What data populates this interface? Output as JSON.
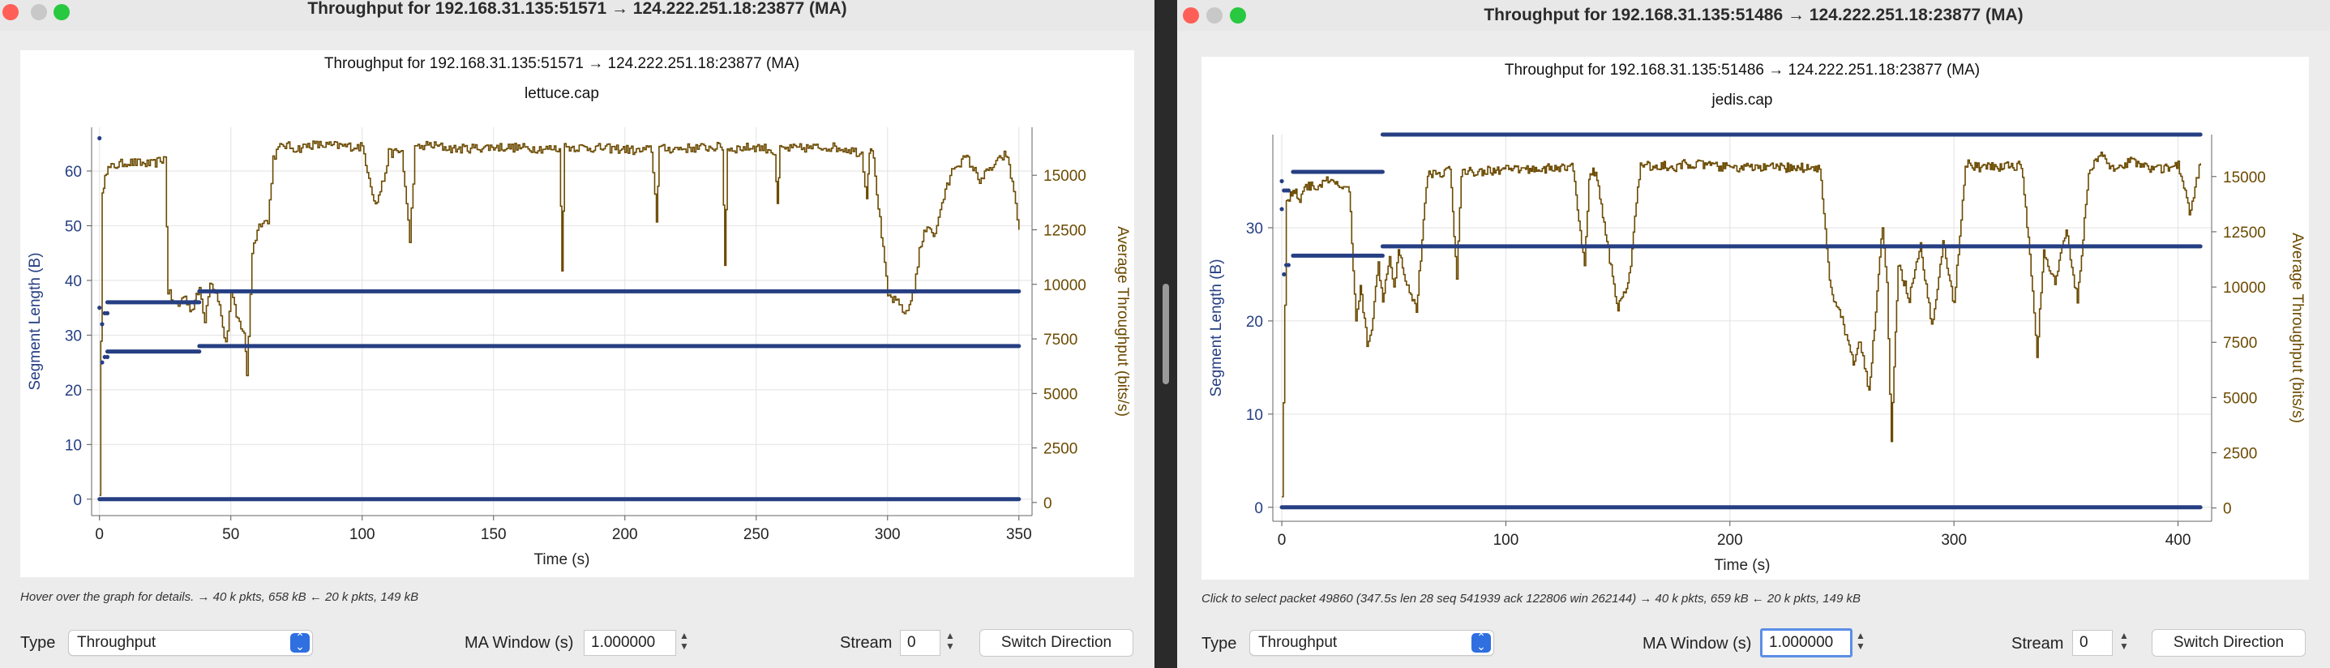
{
  "colors": {
    "segment": "#263f83",
    "throughput": "#6b4a00",
    "grid": "#e2e2e2"
  },
  "left": {
    "window_title": "Throughput for 192.168.31.135:51571 → 124.222.251.18:23877 (MA)",
    "chart": {
      "title": "Throughput for 192.168.31.135:51571 → 124.222.251.18:23877 (MA)",
      "subtitle": "lettuce.cap",
      "xlabel": "Time (s)",
      "ylabel_left": "Segment Length (B)",
      "ylabel_right": "Average Throughput (bits/s)",
      "x_ticks": [
        "0",
        "50",
        "100",
        "150",
        "200",
        "250",
        "300",
        "350"
      ],
      "y_left_ticks": [
        "0",
        "10",
        "20",
        "30",
        "40",
        "50",
        "60"
      ],
      "y_right_ticks": [
        "0",
        "2500",
        "5000",
        "7500",
        "10000",
        "12500",
        "15000"
      ]
    },
    "hint": "Hover over the graph for details. → 40 k pkts, 658 kB ← 20 k pkts, 149 kB",
    "type_label": "Type",
    "type_value": "Throughput",
    "ma_label": "MA Window (s)",
    "ma_value": "1.000000",
    "stream_label": "Stream",
    "stream_value": "0",
    "switch_label": "Switch Direction"
  },
  "right": {
    "window_title": "Throughput for 192.168.31.135:51486 → 124.222.251.18:23877 (MA)",
    "chart": {
      "title": "Throughput for 192.168.31.135:51486 → 124.222.251.18:23877 (MA)",
      "subtitle": "jedis.cap",
      "xlabel": "Time (s)",
      "ylabel_left": "Segment Length (B)",
      "ylabel_right": "Average Throughput (bits/s)",
      "x_ticks": [
        "0",
        "100",
        "200",
        "300",
        "400"
      ],
      "y_left_ticks": [
        "0",
        "10",
        "20",
        "30"
      ],
      "y_right_ticks": [
        "0",
        "2500",
        "5000",
        "7500",
        "10000",
        "12500",
        "15000"
      ]
    },
    "hint": "Click to select packet 49860 (347.5s len 28 seq 541939 ack 122806 win 262144) → 40 k pkts, 659 kB ← 20 k pkts, 149 kB",
    "type_label": "Type",
    "type_value": "Throughput",
    "ma_label": "MA Window (s)",
    "ma_value": "1.000000",
    "stream_label": "Stream",
    "stream_value": "0",
    "switch_label": "Switch Direction"
  },
  "chart_data": [
    {
      "type": "scatter+line",
      "title": "Throughput for 192.168.31.135:51571 → 124.222.251.18:23877 (MA)",
      "subtitle": "lettuce.cap",
      "xlabel": "Time (s)",
      "ylabel": "Segment Length (B)",
      "y2label": "Average Throughput (bits/s)",
      "xlim": [
        -3,
        355
      ],
      "ylim": [
        -3,
        68
      ],
      "y2lim": [
        -600,
        17200
      ],
      "grid": true,
      "series": [
        {
          "name": "Segment Length (B)",
          "axis": "left",
          "style": "dots",
          "segments": [
            {
              "x0": 0,
              "x1": 350,
              "y": 0
            },
            {
              "x0": 3,
              "x1": 38,
              "y": 27
            },
            {
              "x0": 38,
              "x1": 350,
              "y": 28
            },
            {
              "x0": 3,
              "x1": 38,
              "y": 36
            },
            {
              "x0": 38,
              "x1": 350,
              "y": 38
            }
          ],
          "points": [
            [
              0,
              66
            ],
            [
              0,
              35
            ],
            [
              1,
              32
            ],
            [
              2,
              34
            ],
            [
              3,
              34
            ],
            [
              1,
              25
            ],
            [
              2,
              26
            ],
            [
              3,
              26
            ]
          ]
        },
        {
          "name": "Average Throughput (bits/s)",
          "axis": "right",
          "style": "step-line",
          "x": [
            0,
            1,
            2,
            5,
            10,
            20,
            25,
            26,
            28,
            30,
            32,
            35,
            38,
            40,
            42,
            45,
            48,
            50,
            52,
            55,
            56,
            58,
            60,
            62,
            64,
            66,
            68,
            70,
            75,
            80,
            100,
            105,
            108,
            110,
            115,
            118,
            120,
            125,
            135,
            150,
            175,
            176,
            177,
            200,
            205,
            210,
            212,
            213,
            214,
            237,
            238,
            239,
            250,
            255,
            257,
            258,
            259,
            278,
            285,
            290,
            292,
            293,
            294,
            300,
            305,
            307,
            310,
            312,
            315,
            318,
            320,
            325,
            330,
            335,
            345,
            348,
            350
          ],
          "y": [
            500,
            14000,
            15200,
            15400,
            15600,
            15500,
            15800,
            9700,
            9200,
            9000,
            9500,
            8800,
            9800,
            8400,
            10200,
            9400,
            7200,
            9600,
            8500,
            7800,
            5800,
            11500,
            12500,
            13000,
            12800,
            15800,
            16200,
            16400,
            16200,
            16400,
            16300,
            13600,
            14800,
            16000,
            16100,
            12000,
            16200,
            16400,
            16200,
            16300,
            16200,
            10800,
            16300,
            16200,
            16100,
            16200,
            13000,
            16300,
            16200,
            16300,
            10900,
            16200,
            16300,
            16200,
            16000,
            13500,
            16200,
            16300,
            16200,
            16000,
            14000,
            16200,
            16300,
            9500,
            9000,
            8600,
            9800,
            11500,
            12800,
            12200,
            13500,
            15400,
            15800,
            14800,
            16000,
            14300,
            12500
          ]
        }
      ]
    },
    {
      "type": "scatter+line",
      "title": "Throughput for 192.168.31.135:51486 → 124.222.251.18:23877 (MA)",
      "subtitle": "jedis.cap",
      "xlabel": "Time (s)",
      "ylabel": "Segment Length (B)",
      "y2label": "Average Throughput (bits/s)",
      "xlim": [
        -4,
        415
      ],
      "ylim": [
        -1.5,
        40
      ],
      "y2lim": [
        -600,
        16900
      ],
      "grid": true,
      "series": [
        {
          "name": "Segment Length (B)",
          "axis": "left",
          "style": "dots",
          "segments": [
            {
              "x0": 0,
              "x1": 410,
              "y": 0
            },
            {
              "x0": 5,
              "x1": 45,
              "y": 27
            },
            {
              "x0": 45,
              "x1": 410,
              "y": 28
            },
            {
              "x0": 5,
              "x1": 45,
              "y": 36
            },
            {
              "x0": 45,
              "x1": 410,
              "y": 40
            }
          ],
          "points": [
            [
              0,
              35
            ],
            [
              0,
              32
            ],
            [
              1,
              34
            ],
            [
              2,
              34
            ],
            [
              3,
              34
            ],
            [
              1,
              25
            ],
            [
              2,
              26
            ],
            [
              3,
              26
            ]
          ]
        },
        {
          "name": "Average Throughput (bits/s)",
          "axis": "right",
          "style": "step-line",
          "x": [
            0,
            2,
            5,
            8,
            10,
            15,
            20,
            25,
            30,
            33,
            35,
            38,
            40,
            43,
            45,
            48,
            50,
            52,
            55,
            60,
            65,
            70,
            75,
            78,
            80,
            100,
            130,
            135,
            137,
            140,
            145,
            150,
            155,
            160,
            165,
            170,
            175,
            180,
            200,
            240,
            245,
            250,
            255,
            258,
            262,
            265,
            268,
            270,
            272,
            275,
            280,
            285,
            290,
            295,
            300,
            305,
            310,
            330,
            335,
            337,
            340,
            345,
            350,
            355,
            360,
            365,
            370,
            380,
            390,
            400,
            405,
            410
          ],
          "y": [
            500,
            13800,
            14400,
            14000,
            14600,
            14500,
            14800,
            14600,
            14400,
            8500,
            10000,
            7500,
            8200,
            11000,
            9500,
            11500,
            10000,
            11800,
            10400,
            9000,
            15200,
            15100,
            15400,
            10300,
            15200,
            15300,
            15400,
            10800,
            15000,
            15300,
            12000,
            9000,
            10500,
            15600,
            15400,
            15500,
            15300,
            15600,
            15400,
            15400,
            9800,
            8500,
            6500,
            7500,
            5200,
            9000,
            12800,
            10000,
            3000,
            11000,
            9500,
            11800,
            8200,
            12000,
            9200,
            15600,
            15400,
            15500,
            10000,
            7000,
            11500,
            10200,
            12500,
            9400,
            15200,
            16000,
            15400,
            15700,
            15300,
            15500,
            13400,
            15600
          ]
        }
      ]
    }
  ]
}
